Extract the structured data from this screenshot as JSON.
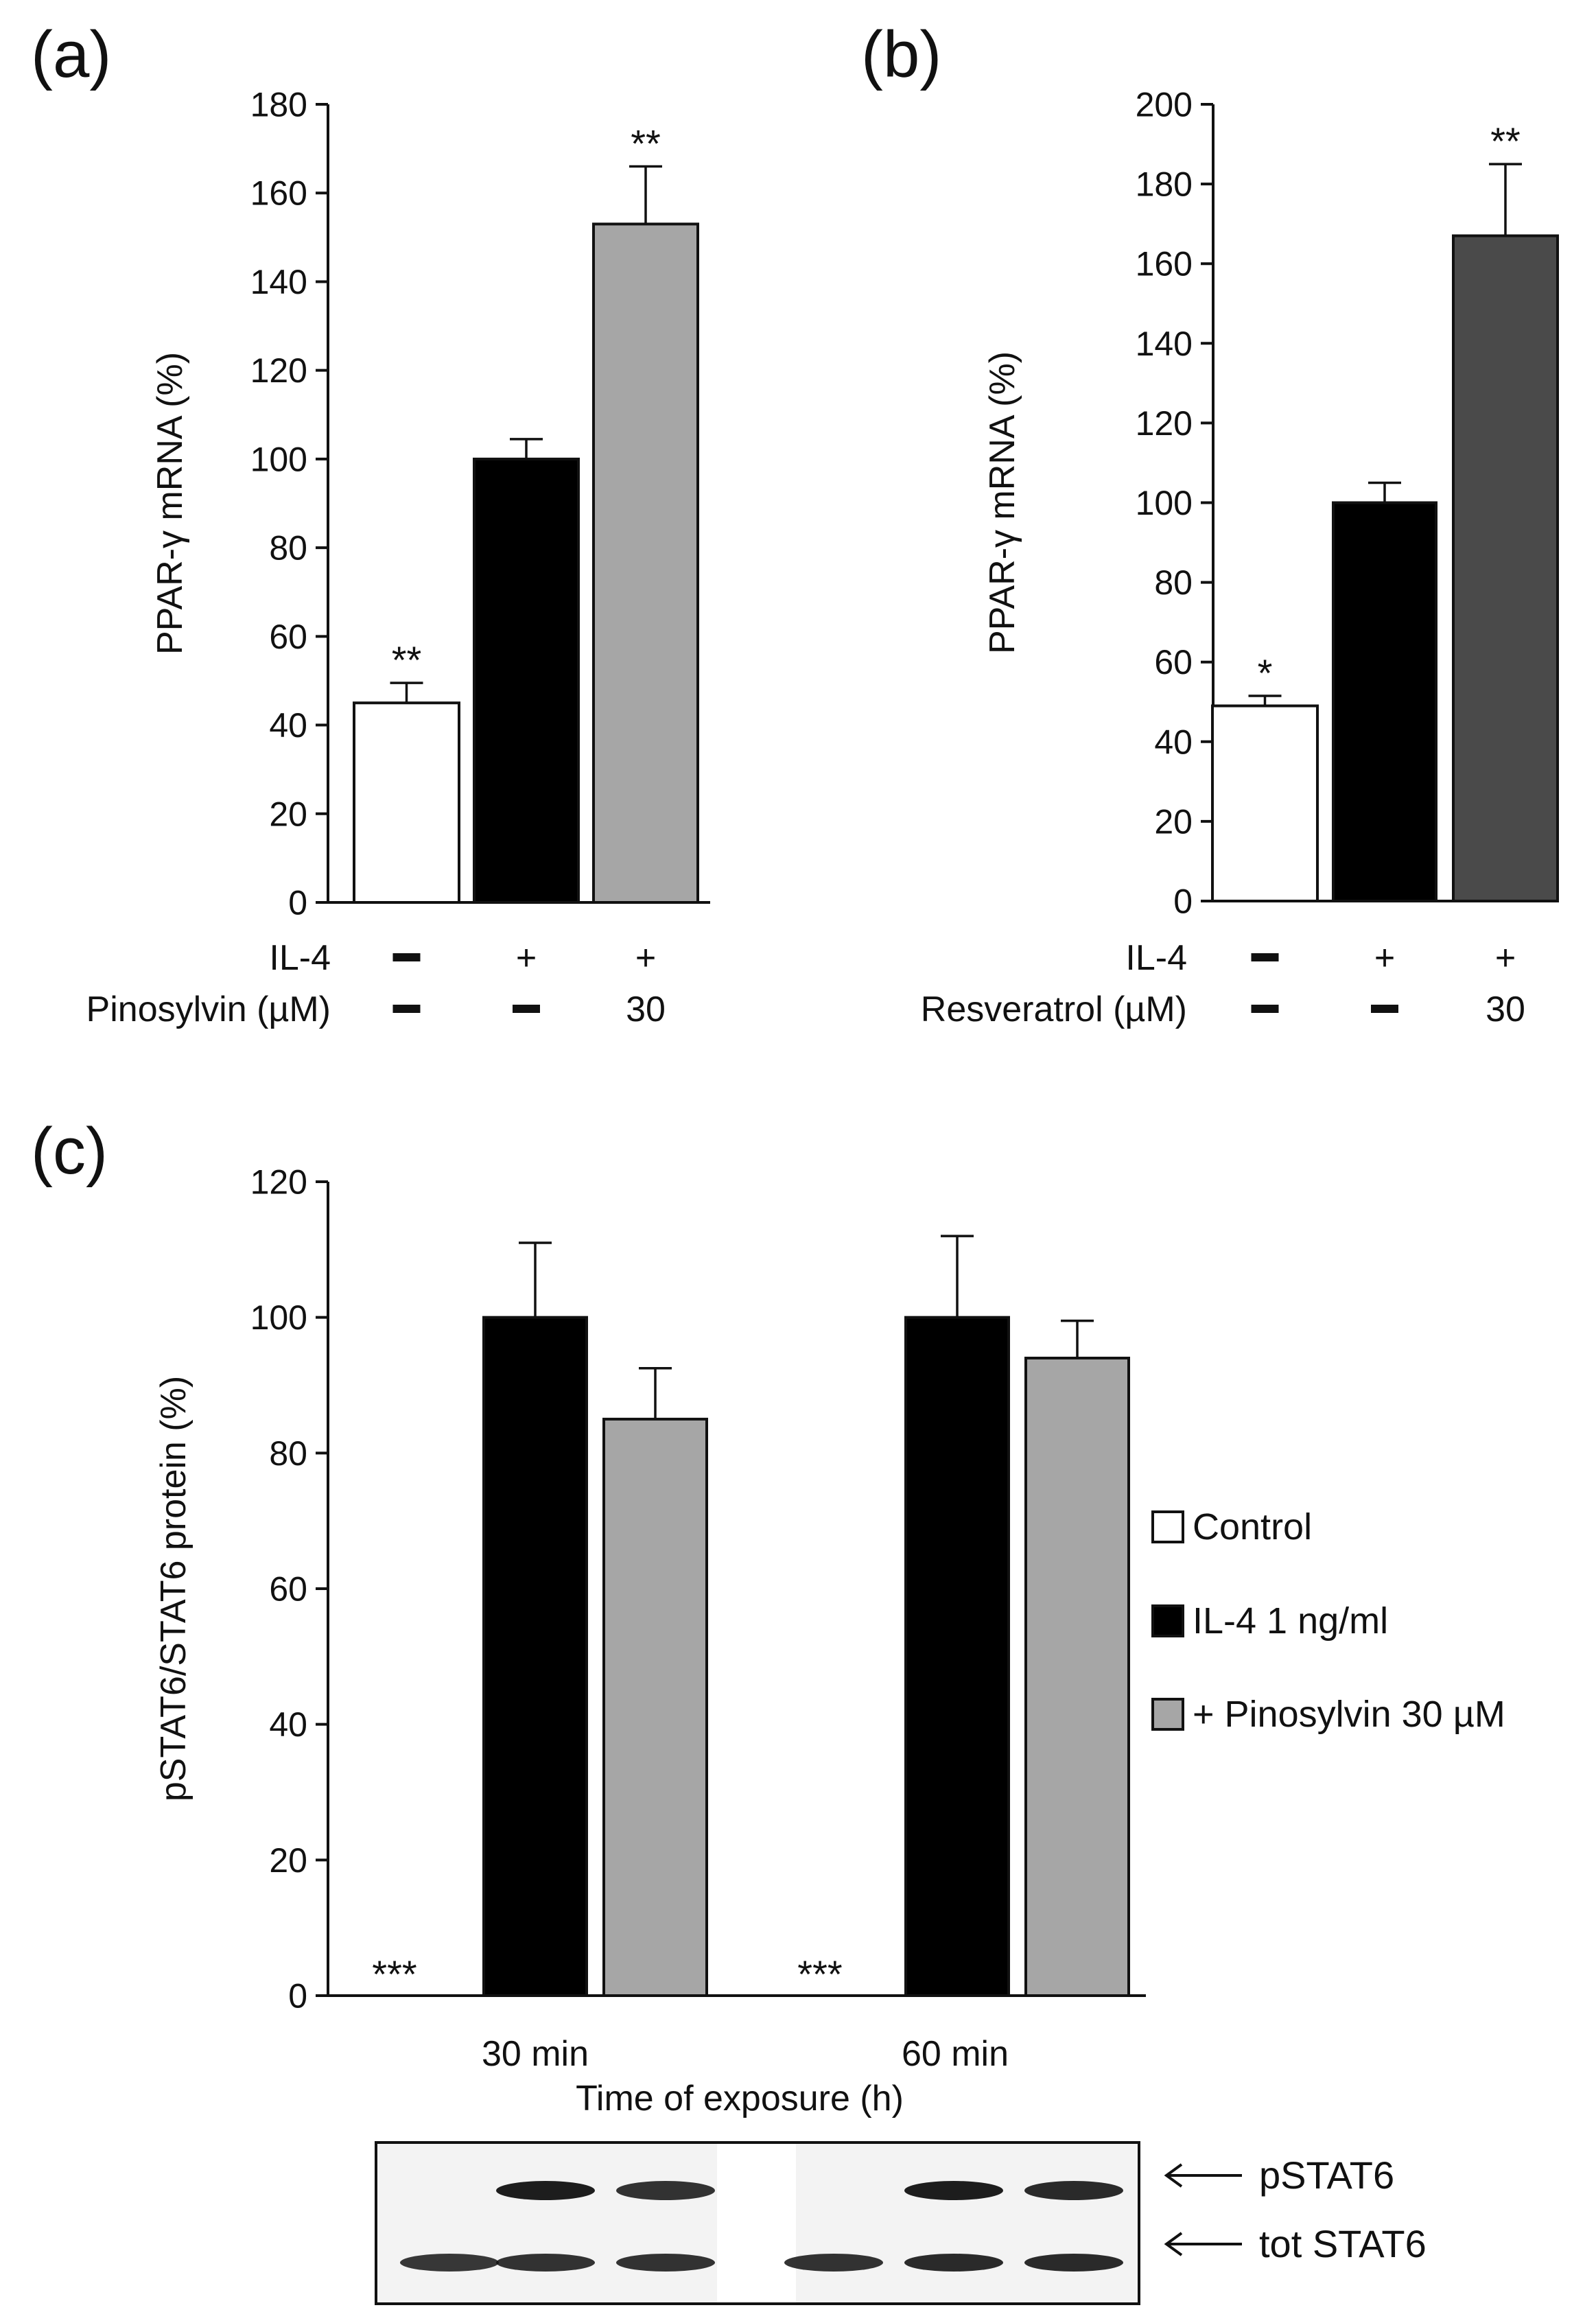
{
  "chart_data": [
    {
      "panel": "(a)",
      "type": "bar",
      "ylabel": "PPAR-γ mRNA (%)",
      "ylim": [
        0,
        180
      ],
      "yticks": [
        0,
        20,
        40,
        60,
        80,
        100,
        120,
        140,
        160,
        180
      ],
      "values": [
        45,
        100,
        153
      ],
      "errors": [
        4.5,
        4.5,
        13
      ],
      "colors": [
        "#ffffff",
        "#000000",
        "#a6a6a6"
      ],
      "annotations": [
        "**",
        "",
        "**"
      ],
      "conditions": [
        {
          "label": "IL-4",
          "values": [
            "–",
            "+",
            "+"
          ]
        },
        {
          "label": "Pinosylvin (µM)",
          "values": [
            "–",
            "–",
            "30"
          ]
        }
      ]
    },
    {
      "panel": "(b)",
      "type": "bar",
      "ylabel": "PPAR-γ mRNA (%)",
      "ylim": [
        0,
        200
      ],
      "yticks": [
        0,
        20,
        40,
        60,
        80,
        100,
        120,
        140,
        160,
        180,
        200
      ],
      "values": [
        49,
        100,
        167
      ],
      "errors": [
        2.5,
        5,
        18
      ],
      "colors": [
        "#ffffff",
        "#000000",
        "#4a4a4a"
      ],
      "annotations": [
        "*",
        "",
        "**"
      ],
      "conditions": [
        {
          "label": "IL-4",
          "values": [
            "–",
            "+",
            "+"
          ]
        },
        {
          "label": "Resveratrol (µM)",
          "values": [
            "–",
            "–",
            "30"
          ]
        }
      ]
    },
    {
      "panel": "(c)",
      "type": "bar",
      "ylabel": "pSTAT6/STAT6 protein (%)",
      "xlabel": "Time of exposure (h)",
      "ylim": [
        0,
        120
      ],
      "yticks": [
        0,
        20,
        40,
        60,
        80,
        100,
        120
      ],
      "categories": [
        "30 min",
        "60 min"
      ],
      "series": [
        {
          "name": "Control",
          "color": "#ffffff",
          "values": [
            0,
            0
          ],
          "errors": [
            0,
            0
          ],
          "annotations": [
            "***",
            "***"
          ]
        },
        {
          "name": "IL-4 1 ng/ml",
          "color": "#000000",
          "values": [
            100,
            100
          ],
          "errors": [
            11,
            12
          ],
          "annotations": [
            "",
            ""
          ]
        },
        {
          "name": "+ Pinosylvin 30 µM",
          "color": "#a6a6a6",
          "values": [
            85,
            94
          ],
          "errors": [
            7.5,
            5.5
          ],
          "annotations": [
            "",
            ""
          ]
        }
      ],
      "blot": {
        "labels": [
          "pSTAT6",
          "tot STAT6"
        ],
        "pstat6_intensity": [
          0,
          1.0,
          0.85,
          0,
          1.0,
          0.9
        ],
        "tot_stat6_intensity": [
          0.8,
          0.85,
          0.85,
          0.85,
          0.9,
          0.9
        ]
      }
    }
  ]
}
